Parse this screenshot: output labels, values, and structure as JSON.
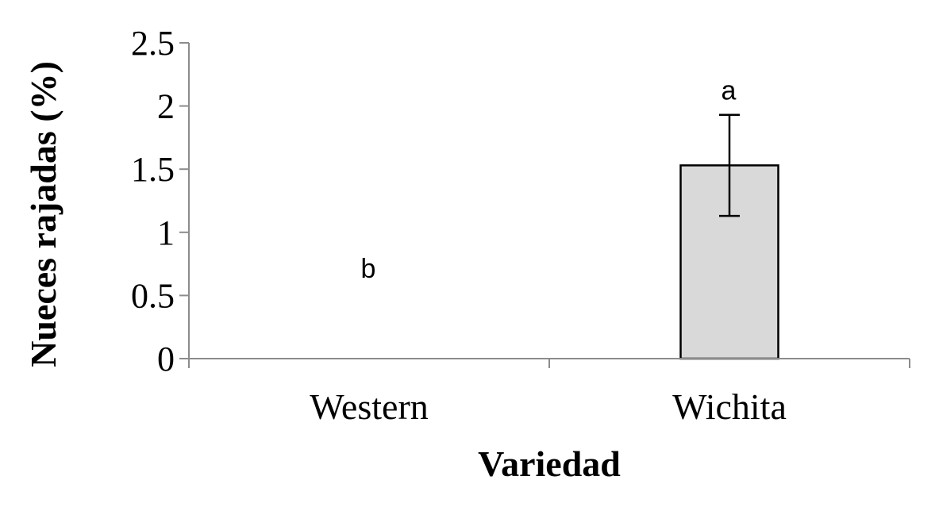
{
  "chart_data": {
    "type": "bar",
    "title": "",
    "xlabel": "Variedad",
    "ylabel": "Nueces rajadas (%)",
    "ylim": [
      0,
      2.5
    ],
    "yticks": [
      "0",
      "0.5",
      "1",
      "1.5",
      "2",
      "2.5"
    ],
    "categories": [
      "Western",
      "Wichita"
    ],
    "series": [
      {
        "values": [
          0,
          1.53
        ],
        "error": [
          0,
          0.4
        ],
        "significance": [
          "b",
          "a"
        ],
        "color": "#d9d9d9",
        "edge_color": "#000000"
      }
    ],
    "grid": false,
    "legend": "none"
  }
}
